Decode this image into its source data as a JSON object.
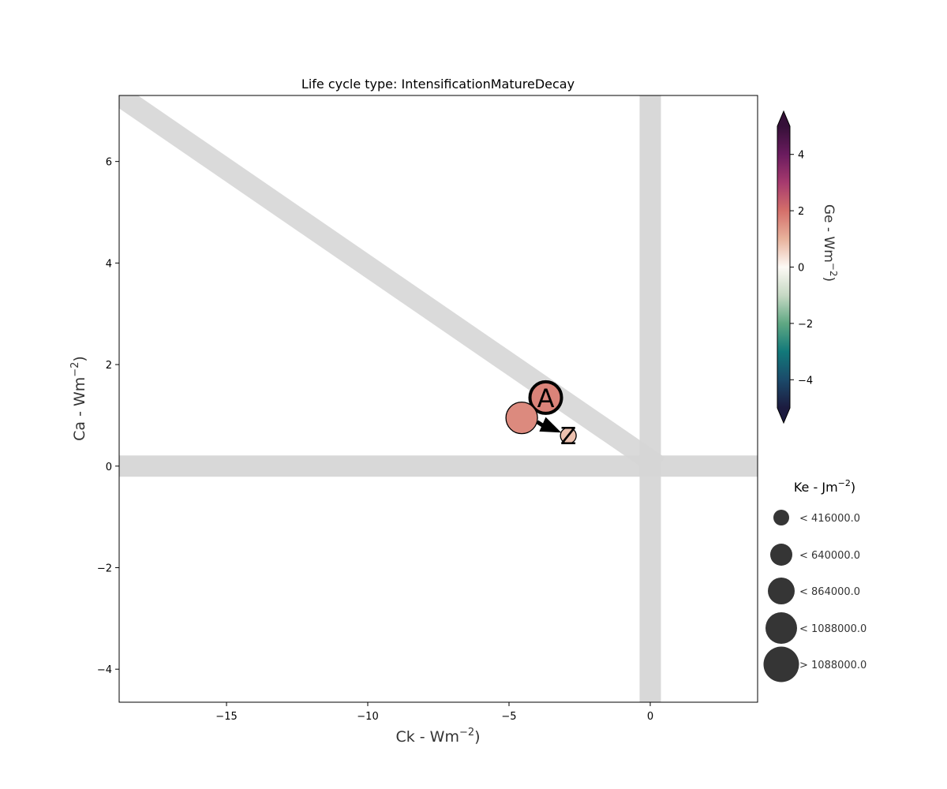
{
  "chart_data": {
    "type": "scatter",
    "title": "Life cycle type: IntensificationMatureDecay",
    "xlabel": "Ck - Wm",
    "xlabel_sup": "−2",
    "xlabel_close": ")",
    "ylabel": "Ca - Wm",
    "ylabel_sup": "−2",
    "ylabel_close": ")",
    "xlim": [
      -18.8,
      3.8
    ],
    "ylim": [
      -4.65,
      7.3
    ],
    "xticks": [
      -15,
      -10,
      -5,
      0
    ],
    "xtick_labels": [
      "−15",
      "−10",
      "−5",
      "0"
    ],
    "yticks": [
      -4,
      -2,
      0,
      2,
      4,
      6
    ],
    "ytick_labels": [
      "−4",
      "−2",
      "0",
      "2",
      "4",
      "6"
    ],
    "reference_bands": {
      "horizontal_y": 0,
      "vertical_x": 0,
      "diagonal_from": [
        -18.8,
        7.3
      ],
      "diagonal_to": [
        0.3,
        0
      ],
      "color": "#d6d6d6"
    },
    "points": [
      {
        "x": -3.7,
        "y": 1.35,
        "ge": 1.7,
        "ke_class": 3,
        "label": "A",
        "bold": true
      },
      {
        "x": -4.55,
        "y": 0.95,
        "ge": 1.6,
        "ke_class": 3,
        "label": "",
        "bold": false
      },
      {
        "x": -2.9,
        "y": 0.6,
        "ge": 0.8,
        "ke_class": 0,
        "label": "Z",
        "bold": false
      }
    ],
    "arrow": {
      "from": [
        -4.0,
        0.87
      ],
      "to": [
        -3.15,
        0.66
      ],
      "color": "#000000"
    },
    "colorbar": {
      "label": "Ge - Wm",
      "label_sup": "−2",
      "label_close": ")",
      "range": [
        -5,
        5
      ],
      "ticks": [
        4,
        2,
        0,
        -2,
        -4
      ],
      "tick_labels": [
        "4",
        "2",
        "0",
        "−2",
        "−4"
      ],
      "colormap": "curl",
      "stops": [
        "#1c1b3f",
        "#1b4a6a",
        "#12797a",
        "#5fa883",
        "#c6d9c4",
        "#fdf9f5",
        "#e8b29c",
        "#d46f6a",
        "#a63a6e",
        "#6a1b5e",
        "#351038"
      ]
    },
    "size_legend": {
      "title": "Ke - Jm",
      "title_sup": "−2",
      "title_close": ")",
      "color": "#353535",
      "items": [
        {
          "label": "< 416000.0"
        },
        {
          "label": "< 640000.0"
        },
        {
          "label": "< 864000.0"
        },
        {
          "label": "< 1088000.0"
        },
        {
          "label": "> 1088000.0"
        }
      ]
    }
  }
}
